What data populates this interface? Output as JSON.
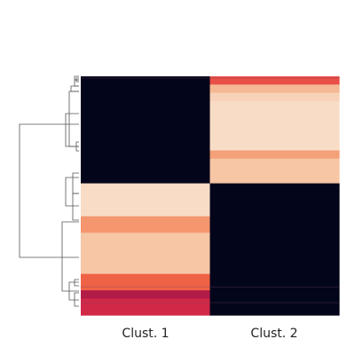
{
  "chart_data": {
    "type": "heatmap",
    "title": "",
    "xlabel": "",
    "ylabel": "",
    "columns": [
      "Clust. 1",
      "Clust. 2"
    ],
    "colormap": "rocket",
    "value_range": [
      0,
      1
    ],
    "grid": false,
    "legend": "none",
    "row_dendrogram": true,
    "rows": [
      {
        "values": [
          0.0,
          0.62
        ]
      },
      {
        "values": [
          0.0,
          0.85
        ]
      },
      {
        "values": [
          0.0,
          0.92
        ]
      },
      {
        "values": [
          0.0,
          0.95
        ]
      },
      {
        "values": [
          0.0,
          0.95
        ]
      },
      {
        "values": [
          0.0,
          0.95
        ]
      },
      {
        "values": [
          0.0,
          0.95
        ]
      },
      {
        "values": [
          0.0,
          0.95
        ]
      },
      {
        "values": [
          0.0,
          0.95
        ]
      },
      {
        "values": [
          0.0,
          0.8
        ]
      },
      {
        "values": [
          0.0,
          0.88
        ]
      },
      {
        "values": [
          0.0,
          0.88
        ]
      },
      {
        "values": [
          0.0,
          0.88
        ]
      },
      {
        "values": [
          0.95,
          0.0
        ]
      },
      {
        "values": [
          0.95,
          0.0
        ]
      },
      {
        "values": [
          0.95,
          0.0
        ]
      },
      {
        "values": [
          0.95,
          0.0
        ]
      },
      {
        "values": [
          0.78,
          0.0
        ]
      },
      {
        "values": [
          0.78,
          0.0
        ]
      },
      {
        "values": [
          0.88,
          0.0
        ]
      },
      {
        "values": [
          0.88,
          0.0
        ]
      },
      {
        "values": [
          0.88,
          0.0
        ]
      },
      {
        "values": [
          0.88,
          0.0
        ]
      },
      {
        "values": [
          0.88,
          0.0
        ]
      },
      {
        "values": [
          0.66,
          0.0
        ]
      },
      {
        "values": [
          0.66,
          0.0
        ]
      },
      {
        "values": [
          0.4,
          0.0
        ]
      },
      {
        "values": [
          0.5,
          0.0
        ]
      },
      {
        "values": [
          0.5,
          0.0
        ]
      }
    ]
  }
}
